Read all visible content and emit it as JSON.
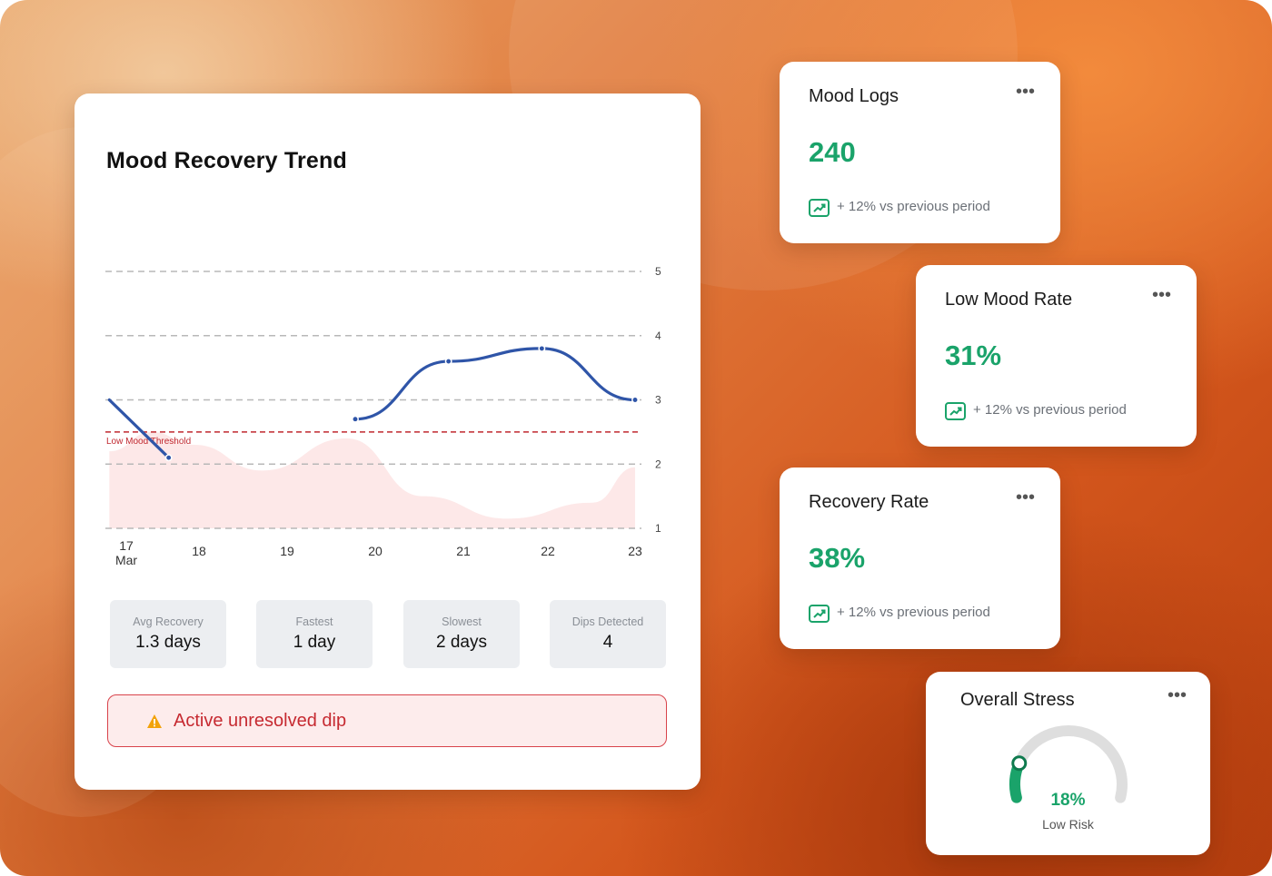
{
  "trend_card": {
    "title": "Mood Recovery Trend",
    "threshold_label": "Low Mood Threshold",
    "stats": [
      {
        "label": "Avg Recovery",
        "value": "1.3 days"
      },
      {
        "label": "Fastest",
        "value": "1 day"
      },
      {
        "label": "Slowest",
        "value": "2 days"
      },
      {
        "label": "Dips Detected",
        "value": "4"
      }
    ],
    "alert": "Active unresolved dip",
    "alert_icon": "warning-triangle-icon"
  },
  "chart_data": {
    "type": "line",
    "x_labels": [
      "17\nMar",
      "18",
      "19",
      "20",
      "21",
      "22",
      "23"
    ],
    "y_ticks": [
      1,
      2,
      3,
      4,
      5
    ],
    "ylim": [
      1,
      5
    ],
    "threshold": 2.5,
    "threshold_label": "Low Mood Threshold",
    "series": [
      {
        "type": "line",
        "color": "#2f55a8",
        "x": [
          16.8,
          17.5
        ],
        "y": [
          3.0,
          2.1
        ]
      },
      {
        "type": "line",
        "color": "#2f55a8",
        "x": [
          19.7,
          20.8,
          21.9,
          23.0
        ],
        "y": [
          2.7,
          3.6,
          3.8,
          3.0
        ]
      },
      {
        "type": "area",
        "color": "#fde8e8",
        "x": [
          16.8,
          17.3,
          17.8,
          18.6,
          19.6,
          20.5,
          21.5,
          22.5,
          23.0
        ],
        "y": [
          2.2,
          2.5,
          2.3,
          1.9,
          2.4,
          1.5,
          1.15,
          1.4,
          1.95
        ]
      }
    ],
    "colors": {
      "line": "#2f55a8",
      "threshold": "#c0282f",
      "area": "#fde8e8"
    }
  },
  "kpis": [
    {
      "title": "Mood Logs",
      "value": "240",
      "trend": "+ 12% vs previous period",
      "icon": "trend-up-icon"
    },
    {
      "title": "Low Mood Rate",
      "value": "31%",
      "trend": "+ 12% vs previous period",
      "icon": "trend-up-icon"
    },
    {
      "title": "Recovery Rate",
      "value": "38%",
      "trend": "+ 12% vs previous period",
      "icon": "trend-up-icon"
    }
  ],
  "stress": {
    "title": "Overall Stress",
    "value": "18%",
    "level": 0.18,
    "label": "Low Risk",
    "accent": "#1aa36a"
  },
  "menu_icon": "•••"
}
